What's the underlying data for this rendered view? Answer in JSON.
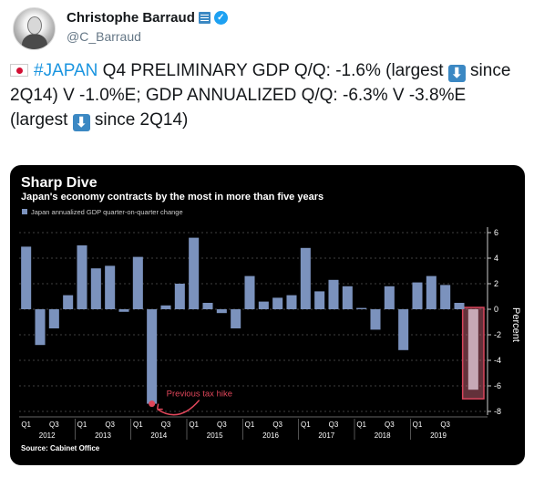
{
  "user": {
    "name": "Christophe Barraud",
    "handle": "@C_Barraud",
    "avatar_icon": "person-portrait",
    "badges": [
      "bank-icon",
      "verified-badge"
    ]
  },
  "tweet": {
    "flag_icon": "japan-flag",
    "hashtag": "#JAPAN",
    "part1": " Q4 PRELIMINARY GDP Q/Q: -1.6% (largest ",
    "arrow_icon": "down-arrow",
    "part2": " since 2Q14) V -1.0%E; GDP ANNUALIZED Q/Q: -6.3% V -3.8%E (largest ",
    "part3": " since 2Q14)"
  },
  "chart_data": {
    "type": "bar",
    "title": "Sharp Dive",
    "subtitle": "Japan's economy contracts by the most in more than five years",
    "legend": "Japan annualized GDP quarter-on-quarter change",
    "ylabel": "Percent",
    "ylim": [
      -8,
      6
    ],
    "yticks": [
      6,
      4,
      2,
      0,
      -2,
      -4,
      -6,
      -8
    ],
    "ytick_labels": [
      "6",
      "4",
      "2",
      "0",
      "-2",
      "-4",
      "-6",
      "-8"
    ],
    "quarter_labels": [
      "Q1",
      "Q3"
    ],
    "year_labels": [
      "2012",
      "2013",
      "2014",
      "2015",
      "2016",
      "2017",
      "2018",
      "2019"
    ],
    "values": [
      4.9,
      -2.8,
      -1.5,
      1.1,
      5.0,
      3.2,
      3.4,
      -0.2,
      4.1,
      -7.4,
      0.3,
      2.0,
      5.6,
      0.5,
      -0.3,
      -1.5,
      2.6,
      0.6,
      0.9,
      1.1,
      4.8,
      1.4,
      2.3,
      1.8,
      0.1,
      -1.6,
      1.8,
      -3.2,
      2.1,
      2.6,
      1.9,
      0.5,
      -6.3
    ],
    "annotation": "Previous tax hike",
    "annotation_index": 9,
    "highlight_index": 32,
    "source": "Source: Cabinet Office",
    "colors": {
      "bar": "#7b92bd",
      "highlight_fill": "#b55a6a",
      "highlight_border": "#d9455c",
      "annotation": "#e0465a",
      "text": "#ffffff",
      "background": "#000000"
    }
  }
}
